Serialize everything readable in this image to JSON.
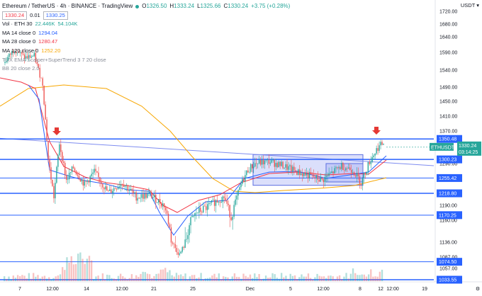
{
  "header": {
    "symbol": "Ethereum / TetherUS · 4h · BINANCE · TradingView",
    "ohlc": {
      "o_label": "O",
      "o": "1326.50",
      "h_label": "H",
      "h": "1333.24",
      "l_label": "L",
      "l": "1325.66",
      "c_label": "C",
      "c": "1330.24",
      "change": "+3.75 (+0.28%)"
    },
    "bid": "1330.24",
    "spread": "0.01",
    "ask": "1330.25"
  },
  "indicators": [
    {
      "label": "Vol · ETH 30",
      "values": [
        "22.446K",
        "54.104K"
      ],
      "color": "#26a69a"
    },
    {
      "label": "MA 14 close 0",
      "values": [
        "1294.04"
      ],
      "color": "#2962ff"
    },
    {
      "label": "MA 28 close 0",
      "values": [
        "1280.47"
      ],
      "color": "#f23645"
    },
    {
      "label": "MA 120 close 0",
      "values": [
        "1252.20"
      ],
      "color": "#f7a600"
    },
    {
      "label": "TUX EMA Scalper+SuperTrend 3 7 20 close",
      "values": [],
      "color": "#8a8e99"
    },
    {
      "label": "BB 20 close 2.0",
      "values": [],
      "color": "#8a8e99"
    }
  ],
  "currency": "USDT",
  "chart_data": {
    "type": "candlestick",
    "price_axis_ticks": [
      1720,
      1680,
      1640,
      1590,
      1540,
      1490,
      1450,
      1410,
      1370,
      1290,
      1190,
      1160,
      1136,
      1087,
      1057
    ],
    "time_axis_labels": [
      "7",
      "12:00",
      "14",
      "12:00",
      "21",
      "25",
      "Dec",
      "5",
      "12:00",
      "8",
      "12",
      "12:00",
      "19"
    ],
    "horizontal_levels": [
      1350.48,
      1300.23,
      1255.42,
      1218.8,
      1170.25,
      1074.5,
      1033.55
    ],
    "last_price": {
      "symbol": "ETHUSDT",
      "price": "1330.24",
      "countdown": "03:14:25"
    },
    "ylim": [
      1030,
      1730
    ],
    "colors": {
      "up": "#26a69a",
      "down": "#ef5350",
      "level": "#2962ff",
      "box": "#7e8cf0",
      "ma14": "#2962ff",
      "ma28": "#f23645",
      "ma120": "#f7a600"
    }
  }
}
